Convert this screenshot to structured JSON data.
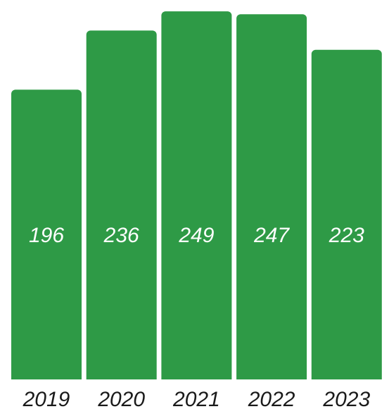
{
  "chart_data": {
    "type": "bar",
    "categories": [
      "2019",
      "2020",
      "2021",
      "2022",
      "2023"
    ],
    "values": [
      196,
      236,
      249,
      247,
      223
    ],
    "value_labels": [
      "196",
      "236",
      "249",
      "247",
      "223"
    ],
    "title": "",
    "xlabel": "",
    "ylabel": "",
    "ylim": [
      0,
      250
    ],
    "grid": false,
    "legend": "none",
    "bar_color": "#2e9a46",
    "value_label_color": "#ffffff",
    "tick_label_color": "#1a1a1a"
  }
}
